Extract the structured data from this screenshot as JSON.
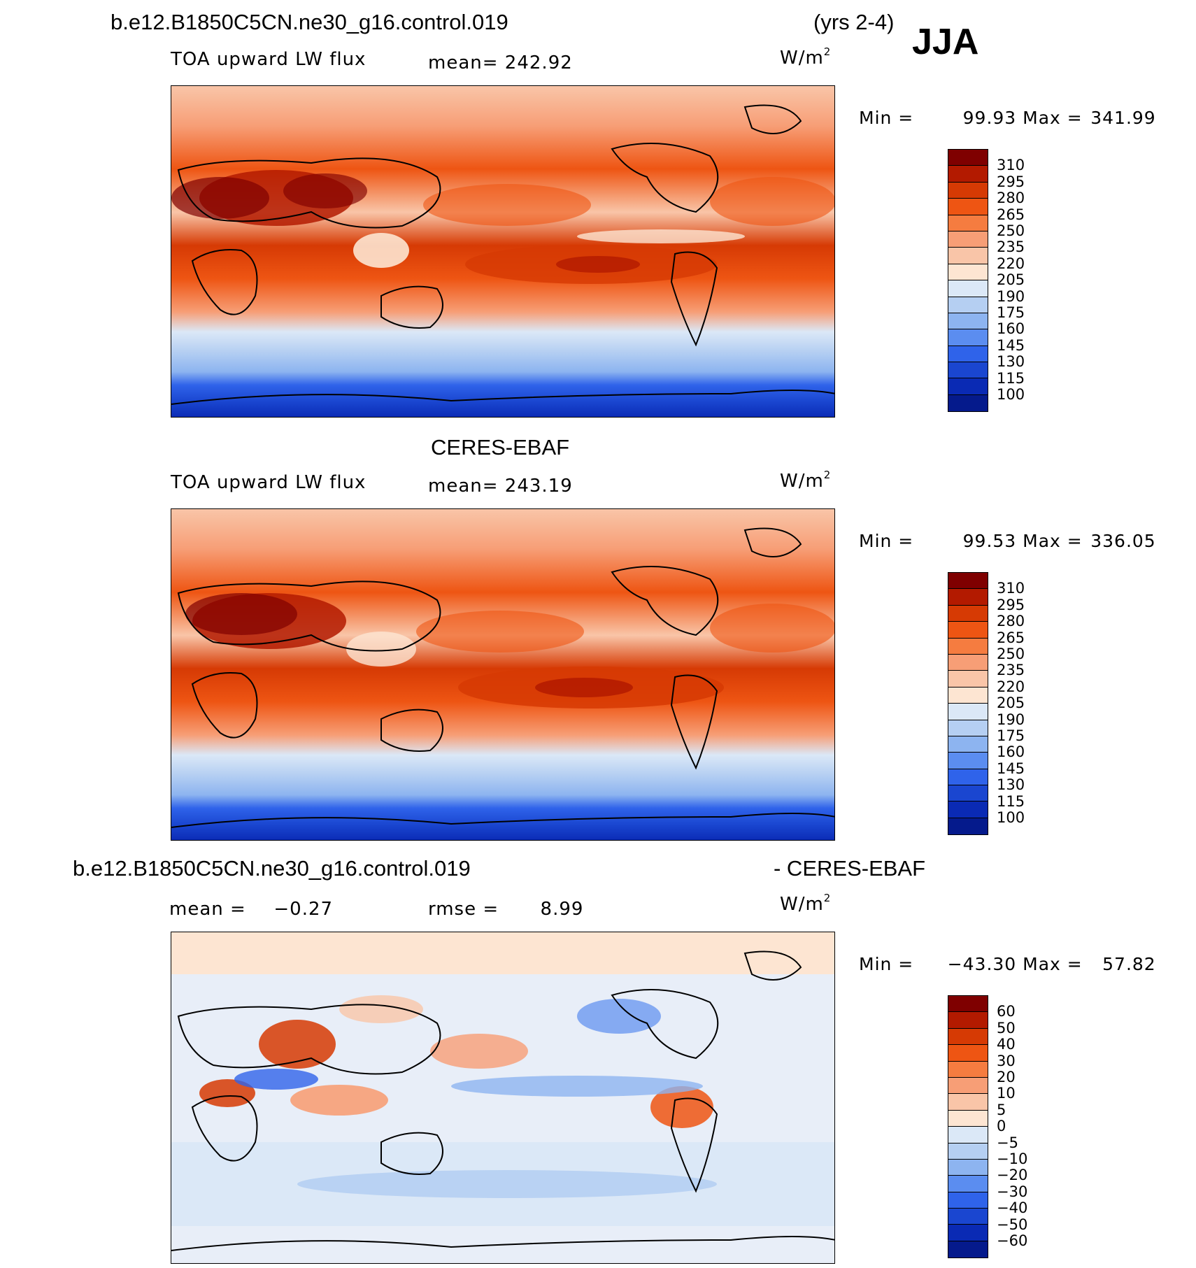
{
  "header": {
    "case_name": "b.e12.B1850C5CN.ne30_g16.control.019",
    "years": "(yrs 2-4)",
    "season": "JJA"
  },
  "panels": [
    {
      "id": "model",
      "title": "",
      "variable": "TOA upward LW flux",
      "mean_label": "mean=",
      "mean_value": "242.92",
      "units": "W/m",
      "units_exp": "2",
      "min_label": "Min =",
      "min_value": "99.93",
      "max_label": "Max =",
      "max_value": "341.99",
      "colorbar_ticks": [
        "310",
        "295",
        "280",
        "265",
        "250",
        "235",
        "220",
        "205",
        "190",
        "175",
        "160",
        "145",
        "130",
        "115",
        "100"
      ]
    },
    {
      "id": "obs",
      "title": "CERES-EBAF",
      "variable": "TOA upward LW flux",
      "mean_label": "mean=",
      "mean_value": "243.19",
      "units": "W/m",
      "units_exp": "2",
      "min_label": "Min =",
      "min_value": "99.53",
      "max_label": "Max =",
      "max_value": "336.05",
      "colorbar_ticks": [
        "310",
        "295",
        "280",
        "265",
        "250",
        "235",
        "220",
        "205",
        "190",
        "175",
        "160",
        "145",
        "130",
        "115",
        "100"
      ]
    },
    {
      "id": "diff",
      "title_left": "b.e12.B1850C5CN.ne30_g16.control.019",
      "title_right": "- CERES-EBAF",
      "mean_label": "mean =",
      "mean_value": "−0.27",
      "rmse_label": "rmse =",
      "rmse_value": "8.99",
      "units": "W/m",
      "units_exp": "2",
      "min_label": "Min =",
      "min_value": "−43.30",
      "max_label": "Max =",
      "max_value": "57.82",
      "colorbar_ticks": [
        "60",
        "50",
        "40",
        "30",
        "20",
        "10",
        "5",
        "0",
        "−5",
        "−10",
        "−20",
        "−30",
        "−40",
        "−50",
        "−60"
      ]
    }
  ],
  "colors": {
    "abs_scale": [
      "#7f0000",
      "#b31a00",
      "#d63a04",
      "#ee5513",
      "#f57c40",
      "#f79e76",
      "#f9c5a8",
      "#fde5d2",
      "#dbe8f7",
      "#b5cff2",
      "#8db4f0",
      "#5b8df0",
      "#2f63ea",
      "#1a46d0",
      "#0a2ab4",
      "#051a8c"
    ],
    "diff_scale": [
      "#7f0000",
      "#b31a00",
      "#d63a04",
      "#ee5513",
      "#f57c40",
      "#f79e76",
      "#f9c5a8",
      "#fde5d2",
      "#dbe8f7",
      "#b5cff2",
      "#8db4f0",
      "#5b8df0",
      "#2f63ea",
      "#1a46d0",
      "#0a2ab4",
      "#051a8c"
    ]
  }
}
